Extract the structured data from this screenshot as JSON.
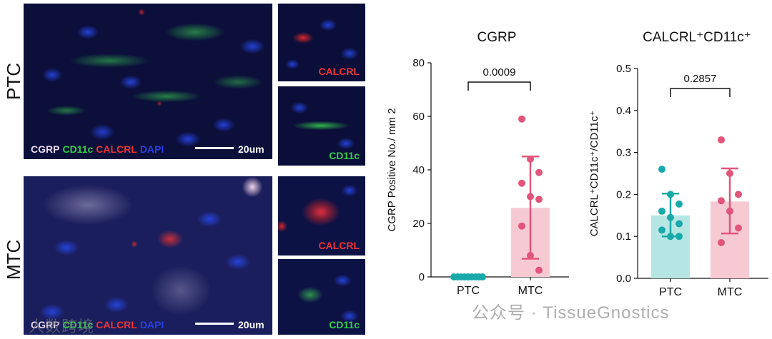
{
  "colors": {
    "ptc": "#1aa9a9",
    "ptc_fill": "#b5e6e3",
    "mtc": "#e2557a",
    "mtc_fill": "#f6c9d3",
    "cgrp": "#e8d8f0",
    "cd11c": "#32d04a",
    "calcrl": "#f03232",
    "dapi": "#2a3fe0"
  },
  "panels": {
    "row_labels": [
      "PTC",
      "MTC"
    ],
    "legend": [
      "CGRP",
      "CD11c",
      "CALCRL",
      "DAPI"
    ],
    "scale": "20um",
    "inset_labels": [
      "CALCRL",
      "CD11c",
      "CALCRL",
      "CD11c"
    ]
  },
  "chart_data": [
    {
      "type": "bar",
      "title": "CGRP",
      "ylabel": "CGRP Positive No./ mm 2",
      "categories": [
        "PTC",
        "MTC"
      ],
      "values": [
        0,
        25.8
      ],
      "error": [
        [
          0,
          0
        ],
        [
          6.8,
          45
        ]
      ],
      "points": [
        [
          0,
          0,
          0,
          0,
          0,
          0,
          0,
          0,
          0
        ],
        [
          59,
          44,
          39,
          35,
          30,
          29,
          19,
          8,
          2.5
        ]
      ],
      "ylim": [
        0,
        80
      ],
      "yticks": [
        0,
        20,
        40,
        60,
        80
      ],
      "yticklabels": [
        "0",
        "20",
        "40",
        "60",
        "80"
      ],
      "annotation": "0.0009"
    },
    {
      "type": "bar",
      "title": "CALCRL⁺CD11c⁺",
      "ylabel": "CALCRL⁺CD11c⁺/CD11c⁺",
      "categories": [
        "PTC",
        "MTC"
      ],
      "values": [
        0.15,
        0.183
      ],
      "error": [
        [
          0.1,
          0.202
        ],
        [
          0.107,
          0.262
        ]
      ],
      "points": [
        [
          0.26,
          0.2,
          0.177,
          0.16,
          0.145,
          0.13,
          0.115,
          0.1,
          0.1
        ],
        [
          0.33,
          0.25,
          0.2,
          0.185,
          0.16,
          0.12,
          0.085
        ]
      ],
      "ylim": [
        0,
        0.5
      ],
      "yticks": [
        0,
        0.1,
        0.2,
        0.3,
        0.4,
        0.5
      ],
      "yticklabels": [
        "0.0",
        "0.1",
        "0.2",
        "0.3",
        "0.4",
        "0.5"
      ],
      "annotation": "0.2857"
    }
  ],
  "watermarks": {
    "left": "人数跨境",
    "right": "公众号 · TissueGnostics"
  }
}
